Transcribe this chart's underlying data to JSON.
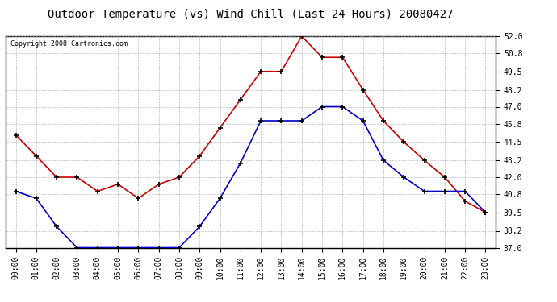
{
  "title": "Outdoor Temperature (vs) Wind Chill (Last 24 Hours) 20080427",
  "copyright": "Copyright 2008 Cartronics.com",
  "hours": [
    "00:00",
    "01:00",
    "02:00",
    "03:00",
    "04:00",
    "05:00",
    "06:00",
    "07:00",
    "08:00",
    "09:00",
    "10:00",
    "11:00",
    "12:00",
    "13:00",
    "14:00",
    "15:00",
    "16:00",
    "17:00",
    "18:00",
    "19:00",
    "20:00",
    "21:00",
    "22:00",
    "23:00"
  ],
  "red_data": [
    45.0,
    43.5,
    42.0,
    42.0,
    41.0,
    41.5,
    40.5,
    41.5,
    42.0,
    43.5,
    45.5,
    47.5,
    49.5,
    49.5,
    52.0,
    50.5,
    50.5,
    48.2,
    46.0,
    44.5,
    43.2,
    42.0,
    40.3,
    39.5
  ],
  "blue_data": [
    41.0,
    40.5,
    38.5,
    37.0,
    37.0,
    37.0,
    37.0,
    37.0,
    37.0,
    38.5,
    40.5,
    43.0,
    46.0,
    46.0,
    46.0,
    47.0,
    47.0,
    46.0,
    43.2,
    42.0,
    41.0,
    41.0,
    41.0,
    39.5
  ],
  "ylim": [
    37.0,
    52.0
  ],
  "yticks": [
    37.0,
    38.2,
    39.5,
    40.8,
    42.0,
    43.2,
    44.5,
    45.8,
    47.0,
    48.2,
    49.5,
    50.8,
    52.0
  ],
  "red_color": "#cc0000",
  "blue_color": "#0000cc",
  "bg_color": "#ffffff",
  "grid_color": "#aaaaaa",
  "title_fontsize": 10,
  "copyright_fontsize": 6,
  "tick_fontsize": 7
}
